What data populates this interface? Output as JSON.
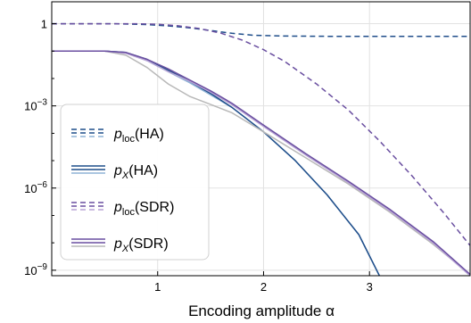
{
  "chart_data": {
    "type": "line",
    "xlabel": "Encoding amplitude α",
    "ylabel": "",
    "xlim": [
      0,
      3.95
    ],
    "ylim_log10": [
      -9.2,
      0.8
    ],
    "yscale": "log",
    "grid": true,
    "legend_position": "lower-left",
    "x_ticks": [
      {
        "value": 1,
        "label": "1"
      },
      {
        "value": 2,
        "label": "2"
      },
      {
        "value": 3,
        "label": "3"
      }
    ],
    "y_ticks": [
      {
        "log10": 0,
        "base": "1",
        "exp": ""
      },
      {
        "log10": -3,
        "base": "10",
        "exp": "−3"
      },
      {
        "log10": -6,
        "base": "10",
        "exp": "−6"
      },
      {
        "log10": -9,
        "base": "10",
        "exp": "−9"
      }
    ],
    "colors": {
      "HA_dark": "#1f4e8a",
      "HA_light": "#8fb3d6",
      "SDR_dark": "#6a4fa0",
      "SDR_light": "#b8a4d6",
      "grey": "#b8b8b8"
    },
    "legend": [
      {
        "base": "p",
        "sub": "loc",
        "suffix": "(HA)",
        "style": "dashed",
        "colors": [
          "#1f4e8a",
          "#8fb3d6"
        ]
      },
      {
        "base": "p",
        "sub": "X",
        "suffix": "(HA)",
        "style": "solid",
        "colors": [
          "#1f4e8a",
          "#8fb3d6"
        ]
      },
      {
        "base": "p",
        "sub": "loc",
        "suffix": "(SDR)",
        "style": "dashed",
        "colors": [
          "#6a4fa0",
          "#b8a4d6"
        ]
      },
      {
        "base": "p",
        "sub": "X",
        "suffix": "(SDR)",
        "style": "solid",
        "colors": [
          "#6a4fa0",
          "#b8b8b8"
        ]
      }
    ],
    "series": [
      {
        "color": "#1f4e8a",
        "dash": true,
        "x": [
          0.0,
          0.6,
          0.9,
          1.1,
          1.3,
          1.5,
          1.7,
          1.9,
          2.2,
          2.6,
          3.0,
          3.5,
          3.95
        ],
        "log10y": [
          0.0,
          0.0,
          -0.03,
          -0.08,
          -0.15,
          -0.25,
          -0.35,
          -0.42,
          -0.45,
          -0.46,
          -0.46,
          -0.46,
          -0.46
        ]
      },
      {
        "color": "#6a4fa0",
        "dash": true,
        "x": [
          0.0,
          0.8,
          1.0,
          1.2,
          1.4,
          1.6,
          1.8,
          2.0,
          2.2,
          2.5,
          2.8,
          3.1,
          3.4,
          3.7,
          3.95
        ],
        "log10y": [
          0.0,
          0.0,
          -0.02,
          -0.08,
          -0.18,
          -0.35,
          -0.6,
          -0.95,
          -1.38,
          -2.2,
          -3.15,
          -4.3,
          -5.55,
          -6.9,
          -8.1
        ]
      },
      {
        "color": "#8fb3d6",
        "dash": false,
        "x": [
          0.0,
          0.5,
          0.7,
          0.9,
          1.1,
          1.3,
          1.5,
          1.7,
          2.0,
          2.3,
          2.6,
          2.9,
          3.1
        ],
        "log10y": [
          -1.0,
          -1.0,
          -1.05,
          -1.35,
          -1.75,
          -2.15,
          -2.6,
          -3.05,
          -3.95,
          -5.0,
          -6.25,
          -7.7,
          -9.25
        ]
      },
      {
        "color": "#1f4e8a",
        "dash": false,
        "x": [
          0.0,
          0.5,
          0.7,
          0.9,
          1.1,
          1.3,
          1.5,
          1.7,
          2.0,
          2.3,
          2.6,
          2.9,
          3.1
        ],
        "log10y": [
          -1.0,
          -1.0,
          -1.05,
          -1.3,
          -1.7,
          -2.1,
          -2.55,
          -3.05,
          -3.95,
          -5.0,
          -6.25,
          -7.7,
          -9.25
        ]
      },
      {
        "color": "#b8b8b8",
        "dash": false,
        "x": [
          0.0,
          0.5,
          0.7,
          0.9,
          1.1,
          1.3,
          1.5,
          1.7,
          2.0,
          2.4,
          2.8,
          3.2,
          3.6,
          3.95
        ],
        "log10y": [
          -1.0,
          -1.0,
          -1.15,
          -1.6,
          -2.2,
          -2.65,
          -2.95,
          -3.25,
          -3.95,
          -4.9,
          -5.85,
          -6.9,
          -8.05,
          -9.15
        ]
      },
      {
        "color": "#b8a4d6",
        "dash": false,
        "x": [
          0.0,
          0.5,
          0.7,
          0.9,
          1.1,
          1.3,
          1.5,
          1.7,
          2.0,
          2.4,
          2.8,
          3.2,
          3.6,
          3.95
        ],
        "log10y": [
          -1.0,
          -1.0,
          -1.08,
          -1.35,
          -1.75,
          -2.1,
          -2.5,
          -2.95,
          -3.75,
          -4.8,
          -5.8,
          -6.85,
          -8.0,
          -9.2
        ]
      },
      {
        "color": "#6a4fa0",
        "dash": false,
        "x": [
          0.0,
          0.5,
          0.7,
          0.9,
          1.1,
          1.3,
          1.5,
          1.7,
          2.0,
          2.4,
          2.8,
          3.2,
          3.6,
          3.95
        ],
        "log10y": [
          -1.0,
          -1.0,
          -1.05,
          -1.3,
          -1.65,
          -2.05,
          -2.45,
          -2.9,
          -3.7,
          -4.75,
          -5.75,
          -6.8,
          -7.95,
          -9.15
        ]
      }
    ]
  }
}
